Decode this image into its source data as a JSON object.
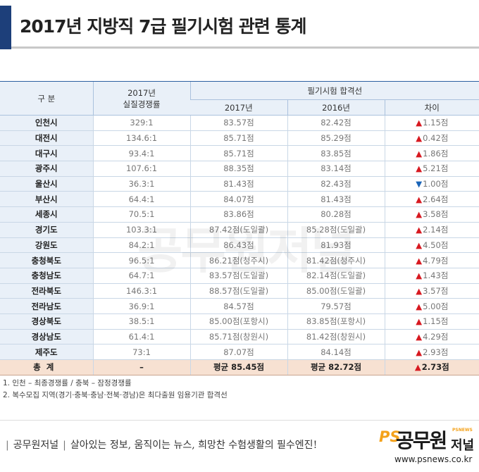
{
  "title": "2017년 지방직 7급 필기시험 관련 통계",
  "table": {
    "headers": {
      "region": "구  분",
      "rate": "2017년\n실질경쟁률",
      "cutoff_group": "필기시험 합격선",
      "y2017": "2017년",
      "y2016": "2016년",
      "diff": "차이"
    },
    "rows": [
      {
        "region": "인천시",
        "rate": "329:1",
        "y2017": "83.57점",
        "y2016": "82.42점",
        "dir": "up",
        "diff": "1.15점"
      },
      {
        "region": "대전시",
        "rate": "134.6:1",
        "y2017": "85.71점",
        "y2016": "85.29점",
        "dir": "up",
        "diff": "0.42점"
      },
      {
        "region": "대구시",
        "rate": "93.4:1",
        "y2017": "85.71점",
        "y2016": "83.85점",
        "dir": "up",
        "diff": "1.86점"
      },
      {
        "region": "광주시",
        "rate": "107.6:1",
        "y2017": "88.35점",
        "y2016": "83.14점",
        "dir": "up",
        "diff": "5.21점"
      },
      {
        "region": "울산시",
        "rate": "36.3:1",
        "y2017": "81.43점",
        "y2016": "82.43점",
        "dir": "down",
        "diff": "1.00점"
      },
      {
        "region": "부산시",
        "rate": "64.4:1",
        "y2017": "84.07점",
        "y2016": "81.43점",
        "dir": "up",
        "diff": "2.64점"
      },
      {
        "region": "세종시",
        "rate": "70.5:1",
        "y2017": "83.86점",
        "y2016": "80.28점",
        "dir": "up",
        "diff": "3.58점"
      },
      {
        "region": "경기도",
        "rate": "103.3:1",
        "y2017": "87.42점(도일괄)",
        "y2016": "85.28점(도일괄)",
        "dir": "up",
        "diff": "2.14점"
      },
      {
        "region": "강원도",
        "rate": "84.2:1",
        "y2017": "86.43점",
        "y2016": "81.93점",
        "dir": "up",
        "diff": "4.50점"
      },
      {
        "region": "충청북도",
        "rate": "96.5:1",
        "y2017": "86.21점(청주시)",
        "y2016": "81.42점(청주시)",
        "dir": "up",
        "diff": "4.79점"
      },
      {
        "region": "충청남도",
        "rate": "64.7:1",
        "y2017": "83.57점(도일괄)",
        "y2016": "82.14점(도일괄)",
        "dir": "up",
        "diff": "1.43점"
      },
      {
        "region": "전라북도",
        "rate": "146.3:1",
        "y2017": "88.57점(도일괄)",
        "y2016": "85.00점(도일괄)",
        "dir": "up",
        "diff": "3.57점"
      },
      {
        "region": "전라남도",
        "rate": "36.9:1",
        "y2017": "84.57점",
        "y2016": "79.57점",
        "dir": "up",
        "diff": "5.00점"
      },
      {
        "region": "경상북도",
        "rate": "38.5:1",
        "y2017": "85.00점(포항시)",
        "y2016": "83.85점(포항시)",
        "dir": "up",
        "diff": "1.15점"
      },
      {
        "region": "경상남도",
        "rate": "61.4:1",
        "y2017": "85.71점(창원시)",
        "y2016": "81.42점(창원시)",
        "dir": "up",
        "diff": "4.29점"
      },
      {
        "region": "제주도",
        "rate": "73:1",
        "y2017": "87.07점",
        "y2016": "84.14점",
        "dir": "up",
        "diff": "2.93점"
      }
    ],
    "total": {
      "region": "총계",
      "rate": "–",
      "y2017": "평균 85.45점",
      "y2016": "평균 82.72점",
      "dir": "up",
      "diff": "2.73점"
    }
  },
  "notes": [
    "1. 인천 – 최종경쟁률 / 충북 – 잠정경쟁률",
    "2. 복수모집 지역(경기·충북·충남·전북·경남)은 최다출원 임용기관 합격선"
  ],
  "footer": {
    "brand": "공무원저널",
    "slogan": "살아있는 정보, 움직이는 뉴스, 희망찬 수험생활의 필수엔진!"
  },
  "logo": {
    "ps": "PS",
    "name": "공무원",
    "sub": "저널",
    "tag": "PSNEWS",
    "url": "www.psnews.co.kr"
  },
  "watermark": "공무원저널",
  "colors": {
    "accent": "#1d3f7a",
    "header_bg": "#e9f0f8",
    "total_bg": "#f7e1d2",
    "up_arrow": "#d71920",
    "down_arrow": "#1a64b8",
    "logo_orange": "#f4a21b"
  },
  "icons": {
    "up": "▲",
    "down": "▼"
  }
}
